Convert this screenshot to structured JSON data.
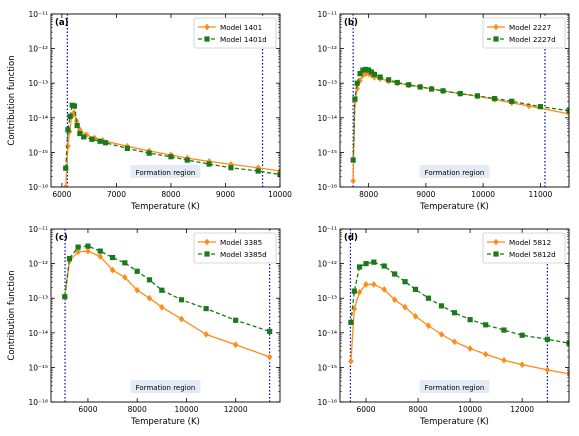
{
  "chart_data": [
    {
      "type": "line",
      "panel_label": "(a)",
      "xlabel": "Temperature (K)",
      "ylabel": "Contribution function",
      "xlim": [
        5800,
        10000
      ],
      "ylim": [
        1e-16,
        1e-11
      ],
      "yscale": "log",
      "x_ticks": [
        6000,
        7000,
        8000,
        9000,
        10000
      ],
      "x_tick_labels": [
        "6000",
        "7000",
        "8000",
        "9000",
        "10000"
      ],
      "y_tick_labels": [
        "10⁻¹⁶",
        "10⁻¹⁵",
        "10⁻¹⁴",
        "10⁻¹³",
        "10⁻¹²",
        "10⁻¹¹"
      ],
      "grid": false,
      "legend": "top-right",
      "formation_lines": [
        6100,
        9680
      ],
      "region_label": "Formation region",
      "series": [
        {
          "name": "Model 1401",
          "marker": "diamond",
          "color": "#ff8c1a",
          "dash": false,
          "x": [
            6070,
            6110,
            6140,
            6180,
            6220,
            6270,
            6330,
            6450,
            6600,
            6750,
            7200,
            7600,
            8000,
            8300,
            8700,
            9100,
            9600,
            10000
          ],
          "y": [
            1e-16,
            1.5e-15,
            4e-15,
            1.1e-14,
            1.4e-14,
            8e-15,
            4.5e-15,
            3.2e-15,
            2.6e-15,
            2.2e-15,
            1.5e-15,
            1.1e-15,
            8.5e-16,
            6.8e-16,
            5.5e-16,
            4.5e-16,
            3.6e-16,
            2.9e-16
          ]
        },
        {
          "name": "Model 1401d",
          "marker": "square",
          "color": "#1a7a1a",
          "dash": true,
          "x": [
            6070,
            6110,
            6150,
            6190,
            6230,
            6280,
            6330,
            6400,
            6550,
            6700,
            6800,
            7200,
            7600,
            8000,
            8300,
            8700,
            9100,
            9600,
            10000
          ],
          "y": [
            3.5e-16,
            4.5e-15,
            1.1e-14,
            2.3e-14,
            2.2e-14,
            6e-15,
            3.5e-15,
            2.8e-15,
            2.4e-15,
            2.1e-15,
            1.9e-15,
            1.3e-15,
            9.5e-16,
            7.5e-16,
            6e-16,
            4.6e-16,
            3.6e-16,
            2.9e-16,
            2.3e-16
          ]
        }
      ]
    },
    {
      "type": "line",
      "panel_label": "(b)",
      "xlabel": "Temperature (K)",
      "ylabel": "",
      "xlim": [
        7500,
        11500
      ],
      "ylim": [
        1e-16,
        1e-11
      ],
      "yscale": "log",
      "x_ticks": [
        8000,
        9000,
        10000,
        11000
      ],
      "x_tick_labels": [
        "8000",
        "9000",
        "10000",
        "11000"
      ],
      "y_tick_labels": [
        "10⁻¹⁶",
        "10⁻¹⁵",
        "10⁻¹⁴",
        "10⁻¹³",
        "10⁻¹²",
        "10⁻¹¹"
      ],
      "grid": false,
      "legend": "top-right",
      "formation_lines": [
        7730,
        11080
      ],
      "region_label": "Formation region",
      "series": [
        {
          "name": "Model 2227",
          "marker": "diamond",
          "color": "#ff8c1a",
          "dash": false,
          "x": [
            7730,
            7760,
            7800,
            7850,
            7900,
            7950,
            8000,
            8050,
            8100,
            8200,
            8350,
            8500,
            8700,
            8900,
            9100,
            9300,
            9600,
            9900,
            10200,
            10500,
            10800,
            11500
          ],
          "y": [
            1.5e-16,
            3e-14,
            7e-14,
            1.2e-13,
            1.7e-13,
            1.9e-13,
            1.9e-13,
            1.7e-13,
            1.5e-13,
            1.35e-13,
            1.15e-13,
            1e-13,
            8.8e-14,
            7.8e-14,
            6.9e-14,
            6e-14,
            5e-14,
            4.2e-14,
            3.4e-14,
            2.7e-14,
            2.2e-14,
            1.3e-14
          ]
        },
        {
          "name": "Model 2227d",
          "marker": "square",
          "color": "#1a7a1a",
          "dash": true,
          "x": [
            7730,
            7760,
            7800,
            7850,
            7900,
            7950,
            8000,
            8050,
            8100,
            8200,
            8350,
            8500,
            8700,
            8900,
            9100,
            9300,
            9600,
            9900,
            10200,
            10500,
            11000,
            11500
          ],
          "y": [
            6e-16,
            3.5e-14,
            1e-13,
            1.9e-13,
            2.4e-13,
            2.5e-13,
            2.4e-13,
            2.1e-13,
            1.8e-13,
            1.5e-13,
            1.25e-13,
            1.05e-13,
            9e-14,
            7.8e-14,
            6.8e-14,
            6e-14,
            5e-14,
            4.3e-14,
            3.6e-14,
            3e-14,
            2.1e-14,
            1.6e-14
          ]
        }
      ]
    },
    {
      "type": "line",
      "panel_label": "(c)",
      "xlabel": "Temperature (K)",
      "ylabel": "Contribution function",
      "xlim": [
        4500,
        13800
      ],
      "ylim": [
        1e-16,
        1e-11
      ],
      "yscale": "log",
      "x_ticks": [
        6000,
        8000,
        10000,
        12000
      ],
      "x_tick_labels": [
        "6000",
        "8000",
        "10000",
        "12000"
      ],
      "y_tick_labels": [
        "10⁻¹⁶",
        "10⁻¹⁵",
        "10⁻¹⁴",
        "10⁻¹³",
        "10⁻¹²",
        "10⁻¹¹"
      ],
      "grid": false,
      "legend": "top-right",
      "formation_lines": [
        5070,
        13380
      ],
      "region_label": "Formation region",
      "series": [
        {
          "name": "Model 3385",
          "marker": "diamond",
          "color": "#ff8c1a",
          "dash": false,
          "x": [
            5060,
            5250,
            5600,
            6000,
            6500,
            7000,
            7500,
            8000,
            8500,
            9000,
            9800,
            10800,
            12000,
            13380
          ],
          "y": [
            1.1e-13,
            1.2e-12,
            2.2e-12,
            2.3e-12,
            1.6e-12,
            6.5e-13,
            4e-13,
            1.7e-13,
            1e-13,
            5.5e-14,
            2.5e-14,
            9e-15,
            4.5e-15,
            2e-15
          ]
        },
        {
          "name": "Model 3385d",
          "marker": "square",
          "color": "#1a7a1a",
          "dash": true,
          "x": [
            5060,
            5250,
            5600,
            6000,
            6500,
            7000,
            7500,
            8000,
            8500,
            9000,
            9800,
            10800,
            12000,
            13380
          ],
          "y": [
            1.1e-13,
            1.4e-12,
            3e-12,
            3.2e-12,
            2.3e-12,
            1.5e-12,
            1.05e-12,
            6e-13,
            3.4e-13,
            1.7e-13,
            9e-14,
            5e-14,
            2.3e-14,
            1.1e-14
          ]
        }
      ]
    },
    {
      "type": "line",
      "panel_label": "(d)",
      "xlabel": "Temperature (K)",
      "ylabel": "",
      "xlim": [
        5000,
        13800
      ],
      "ylim": [
        1e-16,
        1e-11
      ],
      "yscale": "log",
      "x_ticks": [
        6000,
        8000,
        10000,
        12000
      ],
      "x_tick_labels": [
        "6000",
        "8000",
        "10000",
        "12000"
      ],
      "y_tick_labels": [
        "10⁻¹⁶",
        "10⁻¹⁵",
        "10⁻¹⁴",
        "10⁻¹³",
        "10⁻¹²",
        "10⁻¹¹"
      ],
      "grid": false,
      "legend": "top-right",
      "formation_lines": [
        5400,
        12970
      ],
      "region_label": "Formation region",
      "series": [
        {
          "name": "Model 5812",
          "marker": "diamond",
          "color": "#ff8c1a",
          "dash": false,
          "x": [
            5420,
            5550,
            5750,
            6000,
            6300,
            6700,
            7100,
            7500,
            7900,
            8400,
            8900,
            9400,
            10000,
            10600,
            11300,
            12000,
            12970,
            13800
          ],
          "y": [
            1.5e-15,
            5e-14,
            1.5e-13,
            2.5e-13,
            2.5e-13,
            1.8e-13,
            9e-14,
            5.5e-14,
            3e-14,
            1.6e-14,
            9e-15,
            5.5e-15,
            3.5e-15,
            2.4e-15,
            1.6e-15,
            1.2e-15,
            8.5e-16,
            6.5e-16
          ]
        },
        {
          "name": "Model 5812d",
          "marker": "square",
          "color": "#1a7a1a",
          "dash": true,
          "x": [
            5420,
            5550,
            5750,
            6000,
            6300,
            6700,
            7100,
            7500,
            7900,
            8400,
            8900,
            9400,
            10000,
            10600,
            11300,
            12000,
            12970,
            13800
          ],
          "y": [
            2e-14,
            1.6e-13,
            8e-13,
            1e-12,
            1.1e-12,
            8.5e-13,
            5e-13,
            3e-13,
            1.8e-13,
            1e-13,
            6e-14,
            3.8e-14,
            2.4e-14,
            1.7e-14,
            1.2e-14,
            8.5e-15,
            6.5e-15,
            5e-15
          ]
        }
      ]
    }
  ]
}
